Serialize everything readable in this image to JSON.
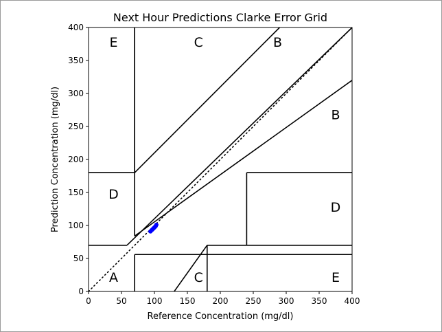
{
  "chart_data": {
    "type": "scatter",
    "title": "Next Hour Predictions Clarke Error Grid",
    "xlabel": "Reference Concentration (mg/dl)",
    "ylabel": "Prediction Concentration (mg/dl)",
    "xlim": [
      0,
      400
    ],
    "ylim": [
      0,
      400
    ],
    "xticks": [
      0,
      50,
      100,
      150,
      200,
      250,
      300,
      350,
      400
    ],
    "yticks": [
      0,
      50,
      100,
      150,
      200,
      250,
      300,
      350,
      400
    ],
    "grid": false,
    "point_color": "#0000ff",
    "points": [
      {
        "x": 94,
        "y": 91
      },
      {
        "x": 96,
        "y": 93
      },
      {
        "x": 97,
        "y": 94
      },
      {
        "x": 98,
        "y": 95
      },
      {
        "x": 99,
        "y": 96
      },
      {
        "x": 100,
        "y": 97
      },
      {
        "x": 101,
        "y": 98
      },
      {
        "x": 102,
        "y": 99
      },
      {
        "x": 103,
        "y": 101
      }
    ],
    "diagonal": {
      "from": [
        0,
        0
      ],
      "to": [
        400,
        400
      ],
      "style": "dotted"
    },
    "zone_lines": [
      [
        [
          0,
          70
        ],
        [
          58.33,
          70
        ]
      ],
      [
        [
          58.33,
          70
        ],
        [
          400,
          400
        ]
      ],
      [
        [
          70,
          84
        ],
        [
          70,
          400
        ]
      ],
      [
        [
          70,
          84
        ],
        [
          400,
          320
        ]
      ],
      [
        [
          70,
          0
        ],
        [
          70,
          56
        ]
      ],
      [
        [
          70,
          56
        ],
        [
          400,
          56
        ]
      ],
      [
        [
          0,
          180
        ],
        [
          70,
          180
        ]
      ],
      [
        [
          70,
          180
        ],
        [
          290,
          400
        ]
      ],
      [
        [
          70,
          180
        ],
        [
          70,
          400
        ]
      ],
      [
        [
          130,
          0
        ],
        [
          180,
          70
        ]
      ],
      [
        [
          180,
          70
        ],
        [
          400,
          70
        ]
      ],
      [
        [
          180,
          0
        ],
        [
          180,
          70
        ]
      ],
      [
        [
          240,
          70
        ],
        [
          240,
          180
        ]
      ],
      [
        [
          240,
          180
        ],
        [
          400,
          180
        ]
      ]
    ],
    "zone_labels": [
      {
        "text": "A",
        "x": 38,
        "y": 22
      },
      {
        "text": "B",
        "x": 375,
        "y": 268
      },
      {
        "text": "B",
        "x": 287,
        "y": 378
      },
      {
        "text": "C",
        "x": 167,
        "y": 378
      },
      {
        "text": "C",
        "x": 167,
        "y": 22
      },
      {
        "text": "D",
        "x": 38,
        "y": 148
      },
      {
        "text": "D",
        "x": 375,
        "y": 128
      },
      {
        "text": "E",
        "x": 38,
        "y": 378
      },
      {
        "text": "E",
        "x": 375,
        "y": 22
      }
    ]
  }
}
